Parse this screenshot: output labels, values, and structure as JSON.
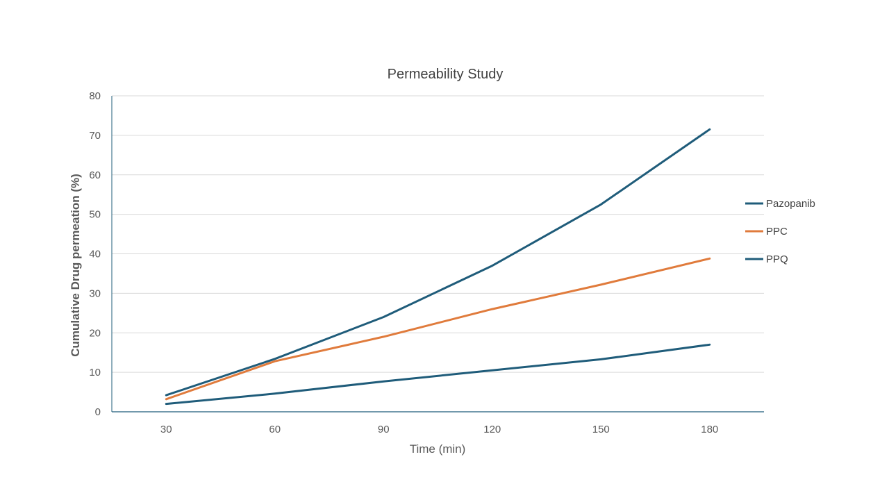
{
  "chart_data": {
    "type": "line",
    "title": "Permeability Study",
    "xlabel": "Time (min)",
    "ylabel": "Cumulative Drug permeation (%)",
    "categories": [
      "30",
      "60",
      "90",
      "120",
      "150",
      "180"
    ],
    "ylim": [
      0,
      80
    ],
    "yticks": [
      "0",
      "10",
      "20",
      "30",
      "40",
      "50",
      "60",
      "70",
      "80"
    ],
    "grid": true,
    "legend_position": "right",
    "series": [
      {
        "name": "Pazopanib",
        "color": "#1f5c7a",
        "values": [
          4.2,
          13.4,
          24.0,
          37.0,
          52.5,
          71.5
        ]
      },
      {
        "name": "PPC",
        "color": "#e07b3c",
        "values": [
          3.2,
          12.8,
          19.0,
          26.0,
          32.2,
          38.8
        ]
      },
      {
        "name": "PPQ",
        "color": "#1f5c7a",
        "values": [
          2.0,
          4.6,
          7.7,
          10.5,
          13.3,
          17.0
        ]
      }
    ]
  }
}
